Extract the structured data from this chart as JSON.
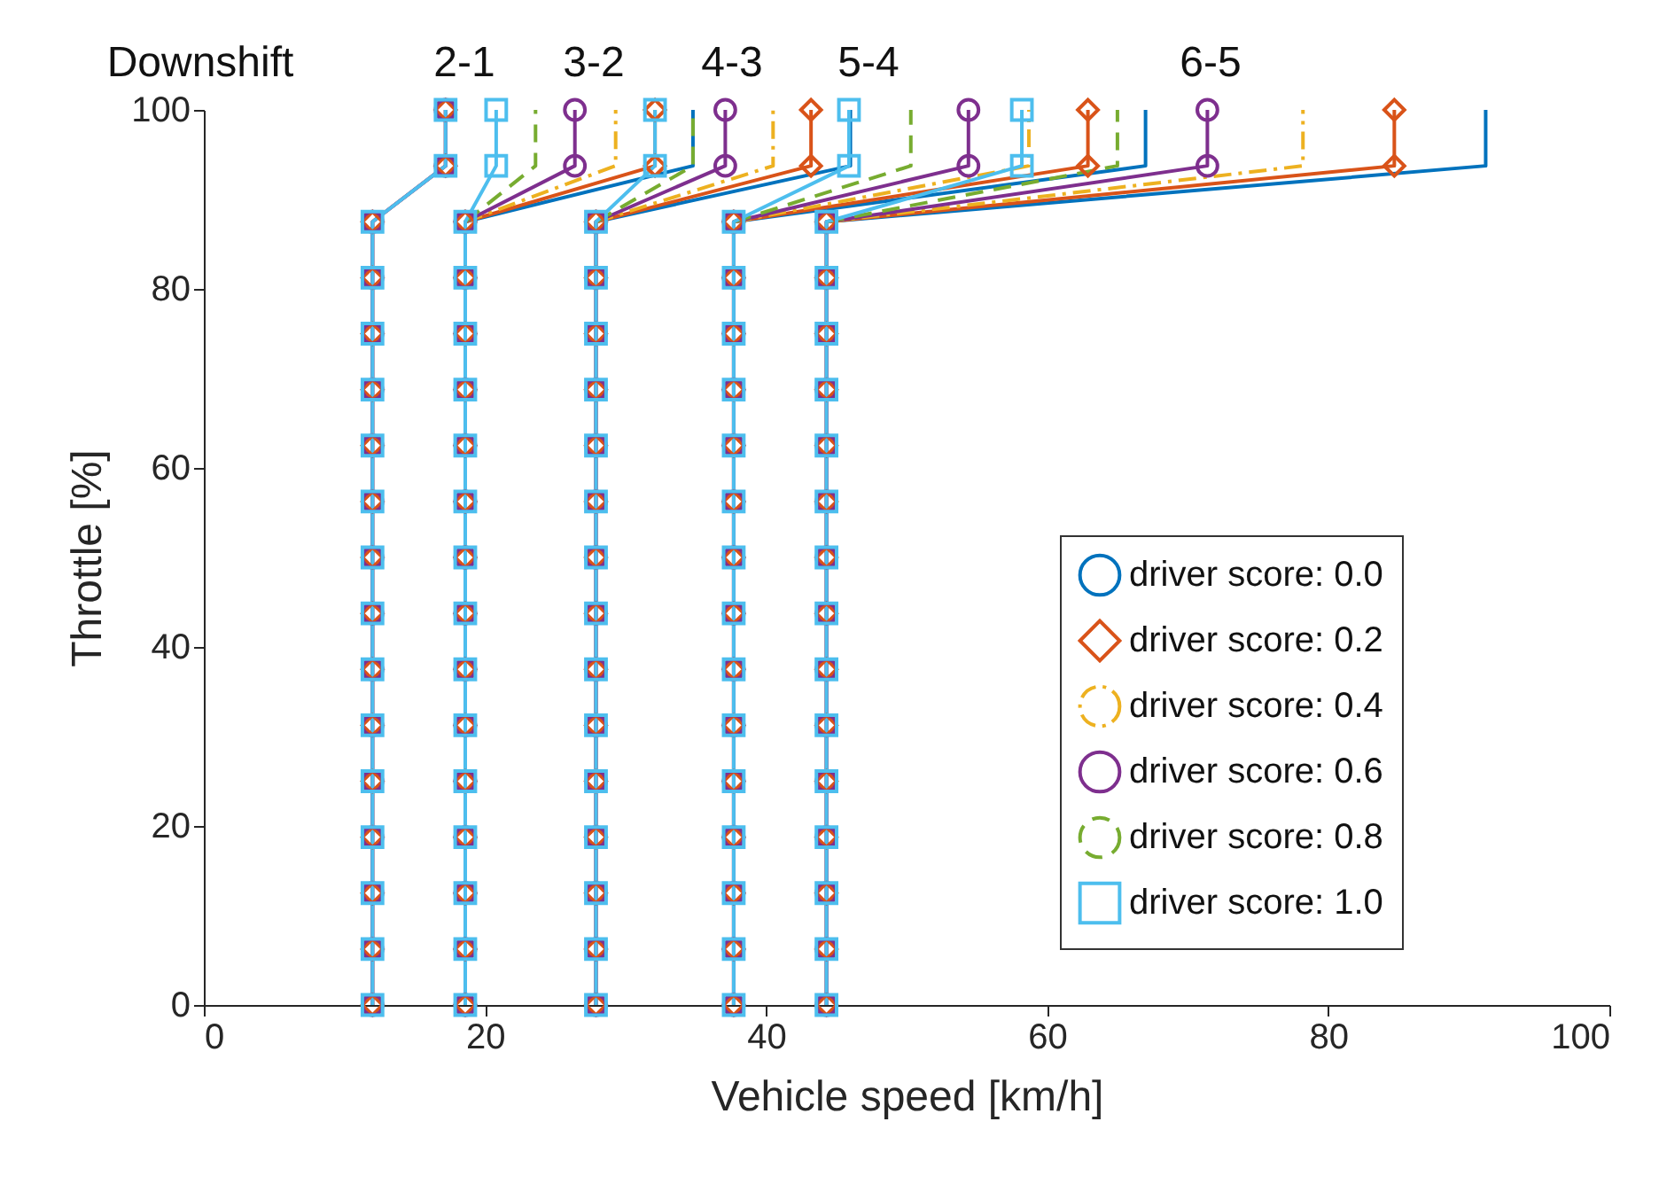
{
  "chart_data": {
    "type": "line",
    "xlabel": "Vehicle speed [km/h]",
    "ylabel": "Throttle [%]",
    "xlim": [
      0,
      100
    ],
    "ylim": [
      0,
      100
    ],
    "xticks": [
      0,
      20,
      40,
      60,
      80,
      100
    ],
    "yticks": [
      0,
      20,
      40,
      60,
      80,
      100
    ],
    "grid": false,
    "legend": "right",
    "annotations": [
      "Downshift",
      "2-1",
      "3-2",
      "4-3",
      "5-4",
      "6-5"
    ],
    "series": [
      {
        "name": "driver score: 0.0",
        "color": "#0072bd",
        "line_style": "solid",
        "marker": "none",
        "x": [
          null,
          null,
          null,
          null,
          null,
          null,
          null,
          null,
          null,
          null,
          null,
          null,
          null,
          null,
          null,
          null,
          null,
          null,
          null,
          null,
          null,
          null,
          null,
          null,
          null,
          null,
          null,
          null,
          null,
          null,
          null,
          null,
          18.6,
          34.8,
          34.8,
          null,
          null,
          null,
          null,
          null,
          null,
          null,
          null,
          null,
          null,
          null,
          null,
          null,
          null,
          null,
          27.9,
          46.0,
          46.0,
          null,
          null,
          null,
          null,
          null,
          null,
          null,
          null,
          null,
          null,
          null,
          null,
          null,
          null,
          null,
          37.7,
          67.0,
          67.0,
          null,
          null,
          null,
          null,
          null,
          null,
          null,
          null,
          null,
          null,
          null,
          null,
          null,
          null,
          null,
          44.3,
          91.2,
          91.2
        ],
        "values": [
          null,
          null,
          null,
          null,
          null,
          null,
          null,
          null,
          null,
          null,
          null,
          null,
          null,
          null,
          null,
          null,
          null,
          null,
          null,
          null,
          null,
          null,
          null,
          null,
          null,
          null,
          null,
          null,
          null,
          null,
          null,
          null,
          87.5,
          93.75,
          100,
          null,
          null,
          null,
          null,
          null,
          null,
          null,
          null,
          null,
          null,
          null,
          null,
          null,
          null,
          null,
          87.5,
          93.75,
          100,
          null,
          null,
          null,
          null,
          null,
          null,
          null,
          null,
          null,
          null,
          null,
          null,
          null,
          null,
          null,
          87.5,
          93.75,
          100,
          null,
          null,
          null,
          null,
          null,
          null,
          null,
          null,
          null,
          null,
          null,
          null,
          null,
          null,
          null,
          87.5,
          93.75,
          100
        ]
      },
      {
        "name": "driver score: 0.2",
        "color": "#d95319",
        "line_style": "solid",
        "marker": "diamond",
        "x": [
          12,
          12,
          12,
          12,
          12,
          12,
          12,
          12,
          12,
          12,
          12,
          12,
          12,
          12,
          12,
          17.2,
          17.2,
          null,
          18.6,
          18.6,
          18.6,
          18.6,
          18.6,
          18.6,
          18.6,
          18.6,
          18.6,
          18.6,
          18.6,
          18.6,
          18.6,
          18.6,
          18.6,
          32.1,
          32.1,
          null,
          27.9,
          27.9,
          27.9,
          27.9,
          27.9,
          27.9,
          27.9,
          27.9,
          27.9,
          27.9,
          27.9,
          27.9,
          27.9,
          27.9,
          27.9,
          43.2,
          43.2,
          null,
          37.7,
          37.7,
          37.7,
          37.7,
          37.7,
          37.7,
          37.7,
          37.7,
          37.7,
          37.7,
          37.7,
          37.7,
          37.7,
          37.7,
          37.7,
          62.9,
          62.9,
          null,
          44.3,
          44.3,
          44.3,
          44.3,
          44.3,
          44.3,
          44.3,
          44.3,
          44.3,
          44.3,
          44.3,
          44.3,
          44.3,
          44.3,
          44.3,
          84.7,
          84.7
        ],
        "values": [
          0,
          6.25,
          12.5,
          18.75,
          25,
          31.25,
          37.5,
          43.75,
          50,
          56.25,
          62.5,
          68.75,
          75,
          81.25,
          87.5,
          93.75,
          100,
          null,
          0,
          6.25,
          12.5,
          18.75,
          25,
          31.25,
          37.5,
          43.75,
          50,
          56.25,
          62.5,
          68.75,
          75,
          81.25,
          87.5,
          93.75,
          100,
          null,
          0,
          6.25,
          12.5,
          18.75,
          25,
          31.25,
          37.5,
          43.75,
          50,
          56.25,
          62.5,
          68.75,
          75,
          81.25,
          87.5,
          93.75,
          100,
          null,
          0,
          6.25,
          12.5,
          18.75,
          25,
          31.25,
          37.5,
          43.75,
          50,
          56.25,
          62.5,
          68.75,
          75,
          81.25,
          87.5,
          93.75,
          100,
          null,
          0,
          6.25,
          12.5,
          18.75,
          25,
          31.25,
          37.5,
          43.75,
          50,
          56.25,
          62.5,
          68.75,
          75,
          81.25,
          87.5,
          93.75,
          100
        ]
      },
      {
        "name": "driver score: 0.4",
        "color": "#edb120",
        "line_style": "dashdot",
        "marker": "none",
        "x": [
          null,
          null,
          null,
          null,
          null,
          null,
          null,
          null,
          null,
          null,
          null,
          null,
          null,
          null,
          null,
          null,
          null,
          null,
          null,
          null,
          null,
          null,
          null,
          null,
          null,
          null,
          null,
          null,
          null,
          null,
          null,
          null,
          18.6,
          29.3,
          29.3,
          null,
          null,
          null,
          null,
          null,
          null,
          null,
          null,
          null,
          null,
          null,
          null,
          null,
          null,
          null,
          27.9,
          40.5,
          40.5,
          null,
          null,
          null,
          null,
          null,
          null,
          null,
          null,
          null,
          null,
          null,
          null,
          null,
          null,
          null,
          37.7,
          58.7,
          58.7,
          null,
          null,
          null,
          null,
          null,
          null,
          null,
          null,
          null,
          null,
          null,
          null,
          null,
          null,
          null,
          44.3,
          78.2,
          78.2
        ],
        "values": [
          null,
          null,
          null,
          null,
          null,
          null,
          null,
          null,
          null,
          null,
          null,
          null,
          null,
          null,
          null,
          null,
          null,
          null,
          null,
          null,
          null,
          null,
          null,
          null,
          null,
          null,
          null,
          null,
          null,
          null,
          null,
          null,
          87.5,
          93.75,
          100,
          null,
          null,
          null,
          null,
          null,
          null,
          null,
          null,
          null,
          null,
          null,
          null,
          null,
          null,
          null,
          87.5,
          93.75,
          100,
          null,
          null,
          null,
          null,
          null,
          null,
          null,
          null,
          null,
          null,
          null,
          null,
          null,
          null,
          null,
          87.5,
          93.75,
          100,
          null,
          null,
          null,
          null,
          null,
          null,
          null,
          null,
          null,
          null,
          null,
          null,
          null,
          null,
          null,
          87.5,
          93.75,
          100
        ]
      },
      {
        "name": "driver score: 0.6",
        "color": "#7e2f8e",
        "line_style": "solid",
        "marker": "circle",
        "x": [
          12,
          12,
          12,
          12,
          12,
          12,
          12,
          12,
          12,
          12,
          12,
          12,
          12,
          12,
          12,
          17.2,
          17.2,
          null,
          18.6,
          18.6,
          18.6,
          18.6,
          18.6,
          18.6,
          18.6,
          18.6,
          18.6,
          18.6,
          18.6,
          18.6,
          18.6,
          18.6,
          18.6,
          26.4,
          26.4,
          null,
          27.9,
          27.9,
          27.9,
          27.9,
          27.9,
          27.9,
          27.9,
          27.9,
          27.9,
          27.9,
          27.9,
          27.9,
          27.9,
          27.9,
          27.9,
          37.1,
          37.1,
          null,
          37.7,
          37.7,
          37.7,
          37.7,
          37.7,
          37.7,
          37.7,
          37.7,
          37.7,
          37.7,
          37.7,
          37.7,
          37.7,
          37.7,
          37.7,
          54.4,
          54.4,
          null,
          44.3,
          44.3,
          44.3,
          44.3,
          44.3,
          44.3,
          44.3,
          44.3,
          44.3,
          44.3,
          44.3,
          44.3,
          44.3,
          44.3,
          44.3,
          71.4,
          71.4
        ],
        "values": [
          0,
          6.25,
          12.5,
          18.75,
          25,
          31.25,
          37.5,
          43.75,
          50,
          56.25,
          62.5,
          68.75,
          75,
          81.25,
          87.5,
          93.75,
          100,
          null,
          0,
          6.25,
          12.5,
          18.75,
          25,
          31.25,
          37.5,
          43.75,
          50,
          56.25,
          62.5,
          68.75,
          75,
          81.25,
          87.5,
          93.75,
          100,
          null,
          0,
          6.25,
          12.5,
          18.75,
          25,
          31.25,
          37.5,
          43.75,
          50,
          56.25,
          62.5,
          68.75,
          75,
          81.25,
          87.5,
          93.75,
          100,
          null,
          0,
          6.25,
          12.5,
          18.75,
          25,
          31.25,
          37.5,
          43.75,
          50,
          56.25,
          62.5,
          68.75,
          75,
          81.25,
          87.5,
          93.75,
          100,
          null,
          0,
          6.25,
          12.5,
          18.75,
          25,
          31.25,
          37.5,
          43.75,
          50,
          56.25,
          62.5,
          68.75,
          75,
          81.25,
          87.5,
          93.75,
          100
        ]
      },
      {
        "name": "driver score: 0.8",
        "color": "#77ac30",
        "line_style": "dashed",
        "marker": "none",
        "x": [
          null,
          null,
          null,
          null,
          null,
          null,
          null,
          null,
          null,
          null,
          null,
          null,
          null,
          null,
          null,
          null,
          null,
          null,
          null,
          null,
          null,
          null,
          null,
          null,
          null,
          null,
          null,
          null,
          null,
          null,
          null,
          null,
          18.6,
          23.6,
          23.6,
          null,
          null,
          null,
          null,
          null,
          null,
          null,
          null,
          null,
          null,
          null,
          null,
          null,
          null,
          null,
          27.9,
          34.8,
          34.8,
          null,
          null,
          null,
          null,
          null,
          null,
          null,
          null,
          null,
          null,
          null,
          null,
          null,
          null,
          null,
          37.7,
          50.3,
          50.3,
          null,
          null,
          null,
          null,
          null,
          null,
          null,
          null,
          null,
          null,
          null,
          null,
          null,
          null,
          null,
          44.3,
          65.0,
          65.0
        ],
        "values": [
          null,
          null,
          null,
          null,
          null,
          null,
          null,
          null,
          null,
          null,
          null,
          null,
          null,
          null,
          null,
          null,
          null,
          null,
          null,
          null,
          null,
          null,
          null,
          null,
          null,
          null,
          null,
          null,
          null,
          null,
          null,
          null,
          87.5,
          93.75,
          100,
          null,
          null,
          null,
          null,
          null,
          null,
          null,
          null,
          null,
          null,
          null,
          null,
          null,
          null,
          null,
          87.5,
          93.75,
          100,
          null,
          null,
          null,
          null,
          null,
          null,
          null,
          null,
          null,
          null,
          null,
          null,
          null,
          null,
          null,
          87.5,
          93.75,
          100,
          null,
          null,
          null,
          null,
          null,
          null,
          null,
          null,
          null,
          null,
          null,
          null,
          null,
          null,
          null,
          87.5,
          93.75,
          100
        ]
      },
      {
        "name": "driver score: 1.0",
        "color": "#4dbeee",
        "line_style": "solid",
        "marker": "square",
        "x": [
          12,
          12,
          12,
          12,
          12,
          12,
          12,
          12,
          12,
          12,
          12,
          12,
          12,
          12,
          12,
          17.2,
          17.2,
          null,
          18.6,
          18.6,
          18.6,
          18.6,
          18.6,
          18.6,
          18.6,
          18.6,
          18.6,
          18.6,
          18.6,
          18.6,
          18.6,
          18.6,
          18.6,
          20.8,
          20.8,
          null,
          27.9,
          27.9,
          27.9,
          27.9,
          27.9,
          27.9,
          27.9,
          27.9,
          27.9,
          27.9,
          27.9,
          27.9,
          27.9,
          27.9,
          27.9,
          32.1,
          32.1,
          null,
          37.7,
          37.7,
          37.7,
          37.7,
          37.7,
          37.7,
          37.7,
          37.7,
          37.7,
          37.7,
          37.7,
          37.7,
          37.7,
          37.7,
          37.7,
          45.9,
          45.9,
          null,
          44.3,
          44.3,
          44.3,
          44.3,
          44.3,
          44.3,
          44.3,
          44.3,
          44.3,
          44.3,
          44.3,
          44.3,
          44.3,
          44.3,
          44.3,
          58.2,
          58.2
        ],
        "values": [
          0,
          6.25,
          12.5,
          18.75,
          25,
          31.25,
          37.5,
          43.75,
          50,
          56.25,
          62.5,
          68.75,
          75,
          81.25,
          87.5,
          93.75,
          100,
          null,
          0,
          6.25,
          12.5,
          18.75,
          25,
          31.25,
          37.5,
          43.75,
          50,
          56.25,
          62.5,
          68.75,
          75,
          81.25,
          87.5,
          93.75,
          100,
          null,
          0,
          6.25,
          12.5,
          18.75,
          25,
          31.25,
          37.5,
          43.75,
          50,
          56.25,
          62.5,
          68.75,
          75,
          81.25,
          87.5,
          93.75,
          100,
          null,
          0,
          6.25,
          12.5,
          18.75,
          25,
          31.25,
          37.5,
          43.75,
          50,
          56.25,
          62.5,
          68.75,
          75,
          81.25,
          87.5,
          93.75,
          100,
          null,
          0,
          6.25,
          12.5,
          18.75,
          25,
          31.25,
          37.5,
          43.75,
          50,
          56.25,
          62.5,
          68.75,
          75,
          81.25,
          87.5,
          93.75,
          100
        ]
      }
    ]
  }
}
